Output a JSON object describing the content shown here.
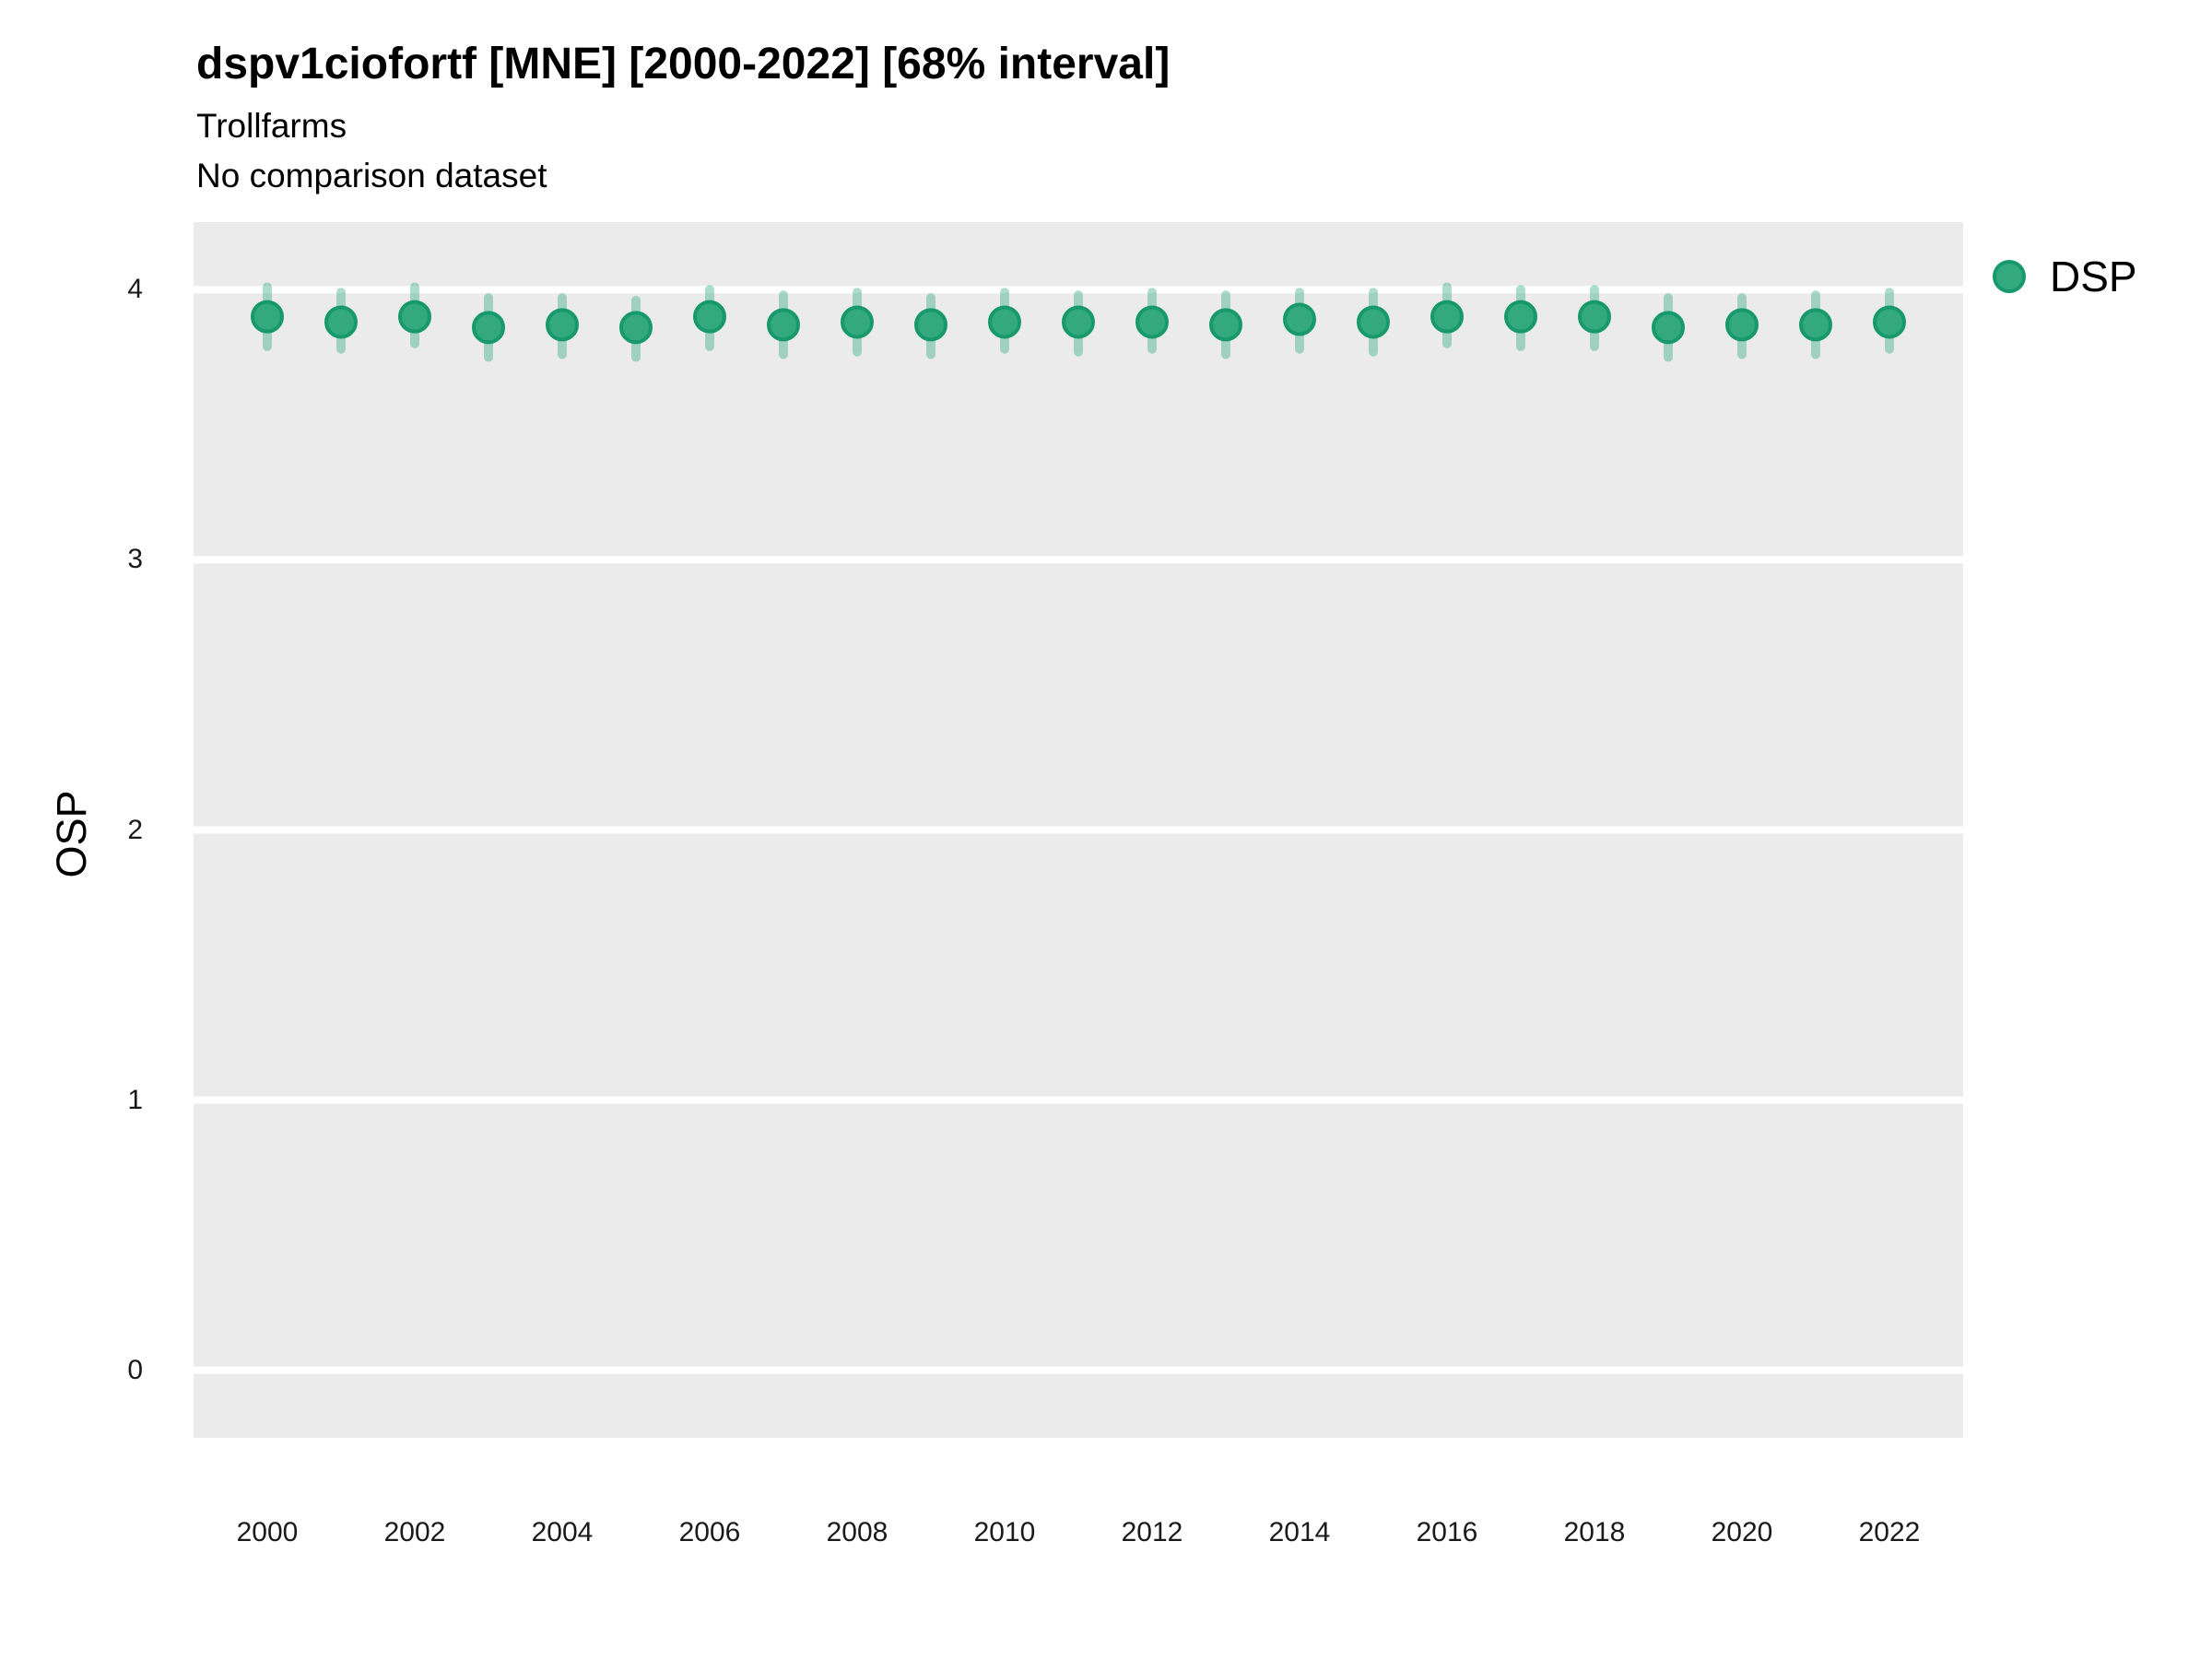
{
  "header": {
    "title": "dspv1ciofortf [MNE] [2000-2022] [68% interval]",
    "subtitle": "Trollfarms",
    "comparison_note": "No comparison dataset"
  },
  "legend": {
    "label": "DSP",
    "position": "right-top"
  },
  "colors": {
    "panel_background": "#EBEBEB",
    "grid_line": "#FFFFFF",
    "point_fill": "#34A97F",
    "point_stroke": "#17996B",
    "interval_band": "rgba(47,169,126,0.40)",
    "title_text": "#000000",
    "tick_text": "#1A1A1A"
  },
  "chart_data": {
    "type": "scatter",
    "title": "dspv1ciofortf [MNE] [2000-2022] [68% interval]",
    "subtitle": "Trollfarms",
    "note": "No comparison dataset",
    "interval": "68%",
    "xlabel": "",
    "ylabel": "OSP",
    "x_domain": [
      1999,
      2023
    ],
    "ylim": [
      -0.25,
      4.25
    ],
    "x_ticks": [
      2000,
      2002,
      2004,
      2006,
      2008,
      2010,
      2012,
      2014,
      2016,
      2018,
      2020,
      2022
    ],
    "y_ticks": [
      0,
      1,
      2,
      3,
      4
    ],
    "grid": {
      "horizontal_major": true,
      "vertical": false,
      "minor": false
    },
    "legend_position": "right-top",
    "series": [
      {
        "name": "DSP",
        "x": [
          2000,
          2001,
          2002,
          2003,
          2004,
          2005,
          2006,
          2007,
          2008,
          2009,
          2010,
          2011,
          2012,
          2013,
          2014,
          2015,
          2016,
          2017,
          2018,
          2019,
          2020,
          2021,
          2022
        ],
        "y": [
          3.9,
          3.88,
          3.9,
          3.86,
          3.87,
          3.86,
          3.9,
          3.87,
          3.88,
          3.87,
          3.88,
          3.88,
          3.88,
          3.87,
          3.89,
          3.88,
          3.9,
          3.9,
          3.9,
          3.86,
          3.87,
          3.87,
          3.88
        ],
        "y_lo": [
          3.79,
          3.78,
          3.8,
          3.75,
          3.76,
          3.75,
          3.79,
          3.76,
          3.77,
          3.76,
          3.78,
          3.77,
          3.78,
          3.76,
          3.78,
          3.77,
          3.8,
          3.79,
          3.79,
          3.75,
          3.76,
          3.76,
          3.78
        ],
        "y_hi": [
          4.01,
          3.99,
          4.01,
          3.97,
          3.97,
          3.96,
          4.0,
          3.98,
          3.99,
          3.97,
          3.99,
          3.98,
          3.99,
          3.98,
          3.99,
          3.99,
          4.01,
          4.0,
          4.0,
          3.97,
          3.97,
          3.98,
          3.99
        ]
      }
    ]
  }
}
